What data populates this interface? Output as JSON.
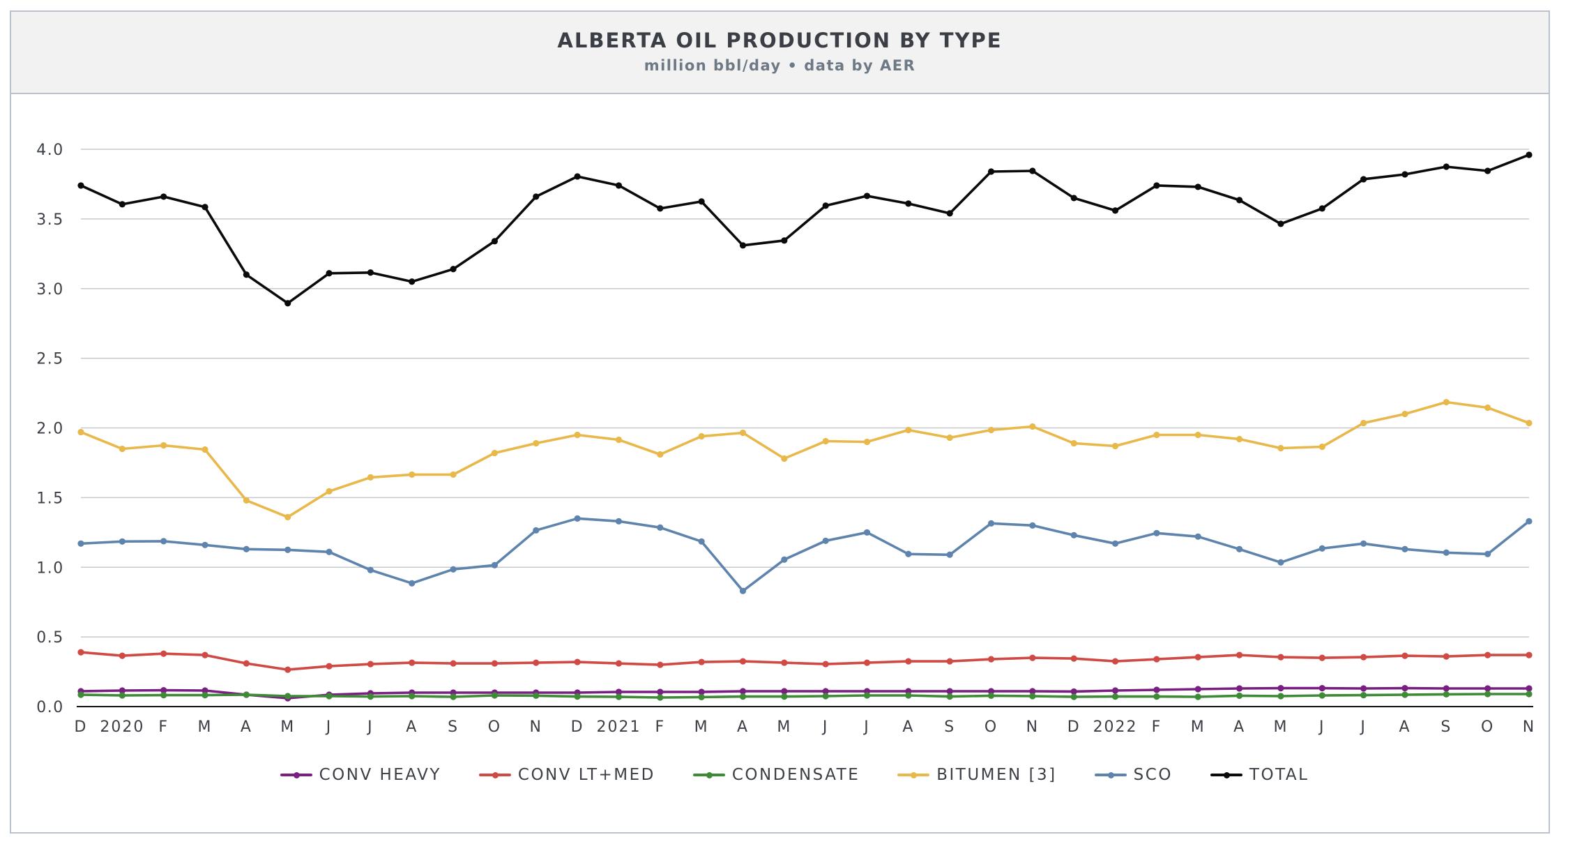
{
  "chart_data": {
    "type": "line",
    "title": "ALBERTA OIL PRODUCTION BY TYPE",
    "subtitle": "million bbl/day • data by AER",
    "xlabel": "",
    "ylabel": "",
    "ylim": [
      0,
      4.0
    ],
    "yticks": [
      "0.0",
      "0.5",
      "1.0",
      "1.5",
      "2.0",
      "2.5",
      "3.0",
      "3.5",
      "4.0"
    ],
    "grid": true,
    "legend": "bottom-center",
    "categories": [
      "D",
      "2020",
      "F",
      "M",
      "A",
      "M",
      "J",
      "J",
      "A",
      "S",
      "O",
      "N",
      "D",
      "2021",
      "F",
      "M",
      "A",
      "M",
      "J",
      "J",
      "A",
      "S",
      "O",
      "N",
      "D",
      "2022",
      "F",
      "M",
      "A",
      "M",
      "J",
      "J",
      "A",
      "S",
      "O",
      "N"
    ],
    "series": [
      {
        "name": "CONV HEAVY",
        "color": "#7a1f82",
        "values": [
          0.11,
          0.115,
          0.117,
          0.115,
          0.085,
          0.06,
          0.085,
          0.095,
          0.1,
          0.1,
          0.1,
          0.1,
          0.1,
          0.105,
          0.105,
          0.105,
          0.11,
          0.11,
          0.11,
          0.11,
          0.11,
          0.11,
          0.11,
          0.11,
          0.108,
          0.115,
          0.12,
          0.125,
          0.13,
          0.132,
          0.132,
          0.13,
          0.132,
          0.13,
          0.13,
          0.13
        ]
      },
      {
        "name": "CONV LT+MED",
        "color": "#d04a45",
        "values": [
          0.39,
          0.365,
          0.38,
          0.37,
          0.31,
          0.265,
          0.29,
          0.305,
          0.315,
          0.31,
          0.31,
          0.315,
          0.32,
          0.31,
          0.3,
          0.32,
          0.325,
          0.315,
          0.305,
          0.315,
          0.325,
          0.325,
          0.34,
          0.35,
          0.345,
          0.325,
          0.34,
          0.355,
          0.37,
          0.355,
          0.35,
          0.355,
          0.365,
          0.36,
          0.37,
          0.37
        ]
      },
      {
        "name": "CONDENSATE",
        "color": "#3f8a36",
        "values": [
          0.085,
          0.08,
          0.082,
          0.082,
          0.085,
          0.075,
          0.075,
          0.072,
          0.075,
          0.07,
          0.08,
          0.078,
          0.072,
          0.07,
          0.065,
          0.068,
          0.072,
          0.072,
          0.075,
          0.08,
          0.08,
          0.072,
          0.078,
          0.075,
          0.07,
          0.072,
          0.072,
          0.07,
          0.078,
          0.075,
          0.08,
          0.082,
          0.085,
          0.088,
          0.09,
          0.09
        ]
      },
      {
        "name": "BITUMEN [3]",
        "color": "#e8b84a",
        "values": [
          1.97,
          1.85,
          1.875,
          1.845,
          1.48,
          1.36,
          1.545,
          1.645,
          1.665,
          1.665,
          1.82,
          1.89,
          1.95,
          1.915,
          1.81,
          1.94,
          1.965,
          1.78,
          1.905,
          1.9,
          1.985,
          1.93,
          1.985,
          2.01,
          1.89,
          1.87,
          1.95,
          1.95,
          1.92,
          1.855,
          1.865,
          2.035,
          2.1,
          2.185,
          2.145,
          2.035
        ]
      },
      {
        "name": "SCO",
        "color": "#5e84ad",
        "values": [
          1.17,
          1.185,
          1.187,
          1.16,
          1.13,
          1.125,
          1.11,
          0.98,
          0.885,
          0.985,
          1.015,
          1.265,
          1.35,
          1.33,
          1.285,
          1.185,
          0.83,
          1.055,
          1.19,
          1.25,
          1.095,
          1.09,
          1.315,
          1.3,
          1.23,
          1.17,
          1.245,
          1.22,
          1.13,
          1.035,
          1.135,
          1.17,
          1.13,
          1.105,
          1.095,
          1.33
        ]
      },
      {
        "name": "TOTAL",
        "color": "#0a0a0a",
        "values": [
          3.74,
          3.605,
          3.66,
          3.585,
          3.1,
          2.895,
          3.11,
          3.115,
          3.05,
          3.14,
          3.34,
          3.66,
          3.805,
          3.74,
          3.575,
          3.625,
          3.31,
          3.345,
          3.595,
          3.665,
          3.61,
          3.54,
          3.84,
          3.845,
          3.65,
          3.56,
          3.74,
          3.73,
          3.635,
          3.465,
          3.575,
          3.785,
          3.82,
          3.875,
          3.845,
          3.96
        ]
      }
    ]
  }
}
